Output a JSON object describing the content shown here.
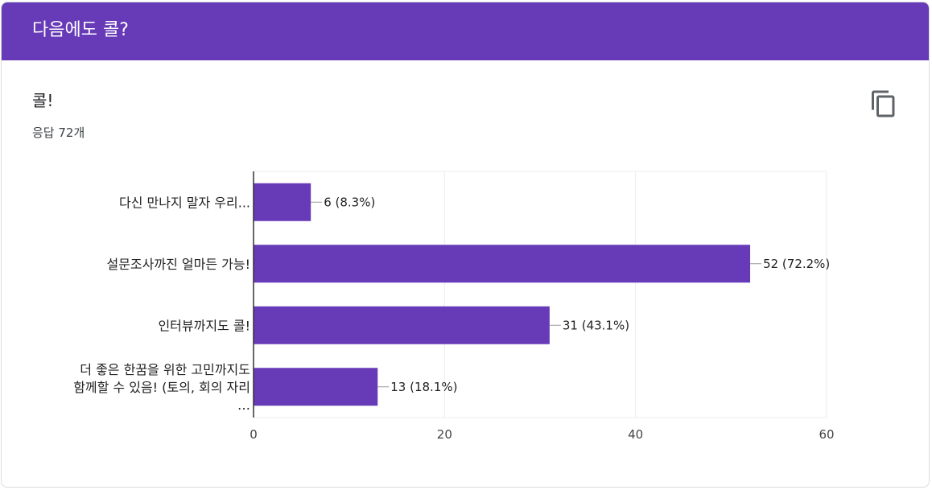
{
  "header": {
    "title": "다음에도 콜?"
  },
  "question": {
    "title": "콜!",
    "response_count": "응답 72개"
  },
  "toolbar": {
    "copy_icon": "copy-icon"
  },
  "colors": {
    "accent": "#673ab7",
    "bar": "#673ab7",
    "grid": "#ececec",
    "axis": "#333333"
  },
  "chart_data": {
    "type": "bar",
    "orientation": "horizontal",
    "title": "콜!",
    "categories": [
      [
        "다신 만나지 말자 우리..."
      ],
      [
        "설문조사까진 얼마든 가능!"
      ],
      [
        "인터뷰까지도 콜!"
      ],
      [
        "더 좋은 한꿈을 위한 고민까지도",
        "함께할 수 있음! (토의, 회의 자리",
        "…"
      ]
    ],
    "values": [
      6,
      52,
      31,
      13
    ],
    "value_labels": [
      "6 (8.3%)",
      "52 (72.2%)",
      "31 (43.1%)",
      "13 (18.1%)"
    ],
    "xlim": [
      0,
      60
    ],
    "xticks": [
      0,
      20,
      40,
      60
    ],
    "xtick_labels": [
      "0",
      "20",
      "40",
      "60"
    ],
    "grid": true
  }
}
